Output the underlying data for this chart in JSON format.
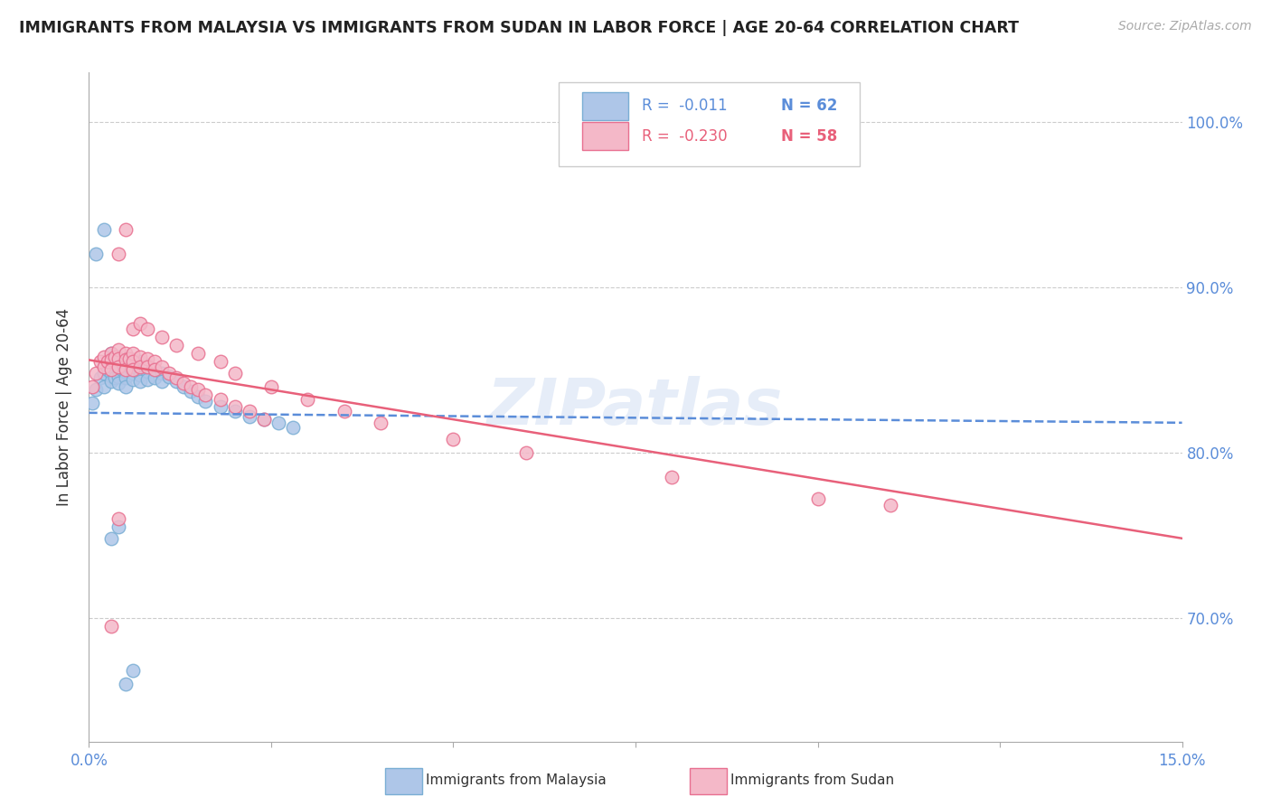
{
  "title": "IMMIGRANTS FROM MALAYSIA VS IMMIGRANTS FROM SUDAN IN LABOR FORCE | AGE 20-64 CORRELATION CHART",
  "source": "Source: ZipAtlas.com",
  "ylabel": "In Labor Force | Age 20-64",
  "ytick_values": [
    0.7,
    0.8,
    0.9,
    1.0
  ],
  "xlim": [
    0.0,
    0.15
  ],
  "ylim": [
    0.625,
    1.03
  ],
  "malaysia_color": "#aec6e8",
  "malaysia_edge": "#7aaed4",
  "sudan_color": "#f4b8c8",
  "sudan_edge": "#e87090",
  "malaysia_line_color": "#5b8dd9",
  "sudan_line_color": "#e8607a",
  "malaysia_R": -0.011,
  "malaysia_N": 62,
  "sudan_R": -0.23,
  "sudan_N": 58,
  "watermark": "ZIPatlas",
  "background_color": "#ffffff",
  "grid_color": "#cccccc",
  "malaysia_x": [
    0.0005,
    0.001,
    0.0015,
    0.002,
    0.002,
    0.002,
    0.0025,
    0.0025,
    0.003,
    0.003,
    0.003,
    0.003,
    0.003,
    0.0035,
    0.0035,
    0.0035,
    0.004,
    0.004,
    0.004,
    0.004,
    0.004,
    0.0045,
    0.0045,
    0.005,
    0.005,
    0.005,
    0.005,
    0.005,
    0.0055,
    0.006,
    0.006,
    0.006,
    0.006,
    0.007,
    0.007,
    0.007,
    0.007,
    0.008,
    0.008,
    0.008,
    0.009,
    0.009,
    0.01,
    0.01,
    0.011,
    0.012,
    0.013,
    0.014,
    0.015,
    0.016,
    0.018,
    0.02,
    0.022,
    0.024,
    0.026,
    0.028,
    0.001,
    0.002,
    0.003,
    0.004,
    0.005,
    0.006
  ],
  "malaysia_y": [
    0.83,
    0.838,
    0.845,
    0.852,
    0.848,
    0.84,
    0.855,
    0.85,
    0.86,
    0.856,
    0.852,
    0.848,
    0.843,
    0.855,
    0.85,
    0.845,
    0.858,
    0.854,
    0.85,
    0.846,
    0.842,
    0.855,
    0.85,
    0.857,
    0.853,
    0.849,
    0.845,
    0.84,
    0.852,
    0.856,
    0.852,
    0.848,
    0.844,
    0.855,
    0.851,
    0.847,
    0.843,
    0.853,
    0.849,
    0.844,
    0.85,
    0.845,
    0.848,
    0.843,
    0.846,
    0.843,
    0.84,
    0.837,
    0.834,
    0.831,
    0.828,
    0.825,
    0.822,
    0.82,
    0.818,
    0.815,
    0.92,
    0.935,
    0.748,
    0.755,
    0.66,
    0.668
  ],
  "sudan_x": [
    0.0005,
    0.001,
    0.0015,
    0.002,
    0.002,
    0.0025,
    0.003,
    0.003,
    0.003,
    0.0035,
    0.004,
    0.004,
    0.004,
    0.005,
    0.005,
    0.005,
    0.0055,
    0.006,
    0.006,
    0.006,
    0.007,
    0.007,
    0.008,
    0.008,
    0.009,
    0.009,
    0.01,
    0.011,
    0.012,
    0.013,
    0.014,
    0.015,
    0.016,
    0.018,
    0.02,
    0.022,
    0.024,
    0.004,
    0.005,
    0.006,
    0.007,
    0.008,
    0.01,
    0.012,
    0.015,
    0.018,
    0.02,
    0.025,
    0.03,
    0.035,
    0.04,
    0.05,
    0.06,
    0.08,
    0.1,
    0.11,
    0.003,
    0.004
  ],
  "sudan_y": [
    0.84,
    0.848,
    0.855,
    0.858,
    0.852,
    0.855,
    0.86,
    0.856,
    0.85,
    0.858,
    0.862,
    0.857,
    0.852,
    0.86,
    0.856,
    0.85,
    0.857,
    0.86,
    0.855,
    0.85,
    0.858,
    0.852,
    0.857,
    0.852,
    0.855,
    0.85,
    0.852,
    0.848,
    0.845,
    0.842,
    0.84,
    0.838,
    0.835,
    0.832,
    0.828,
    0.825,
    0.82,
    0.92,
    0.935,
    0.875,
    0.878,
    0.875,
    0.87,
    0.865,
    0.86,
    0.855,
    0.848,
    0.84,
    0.832,
    0.825,
    0.818,
    0.808,
    0.8,
    0.785,
    0.772,
    0.768,
    0.695,
    0.76
  ]
}
